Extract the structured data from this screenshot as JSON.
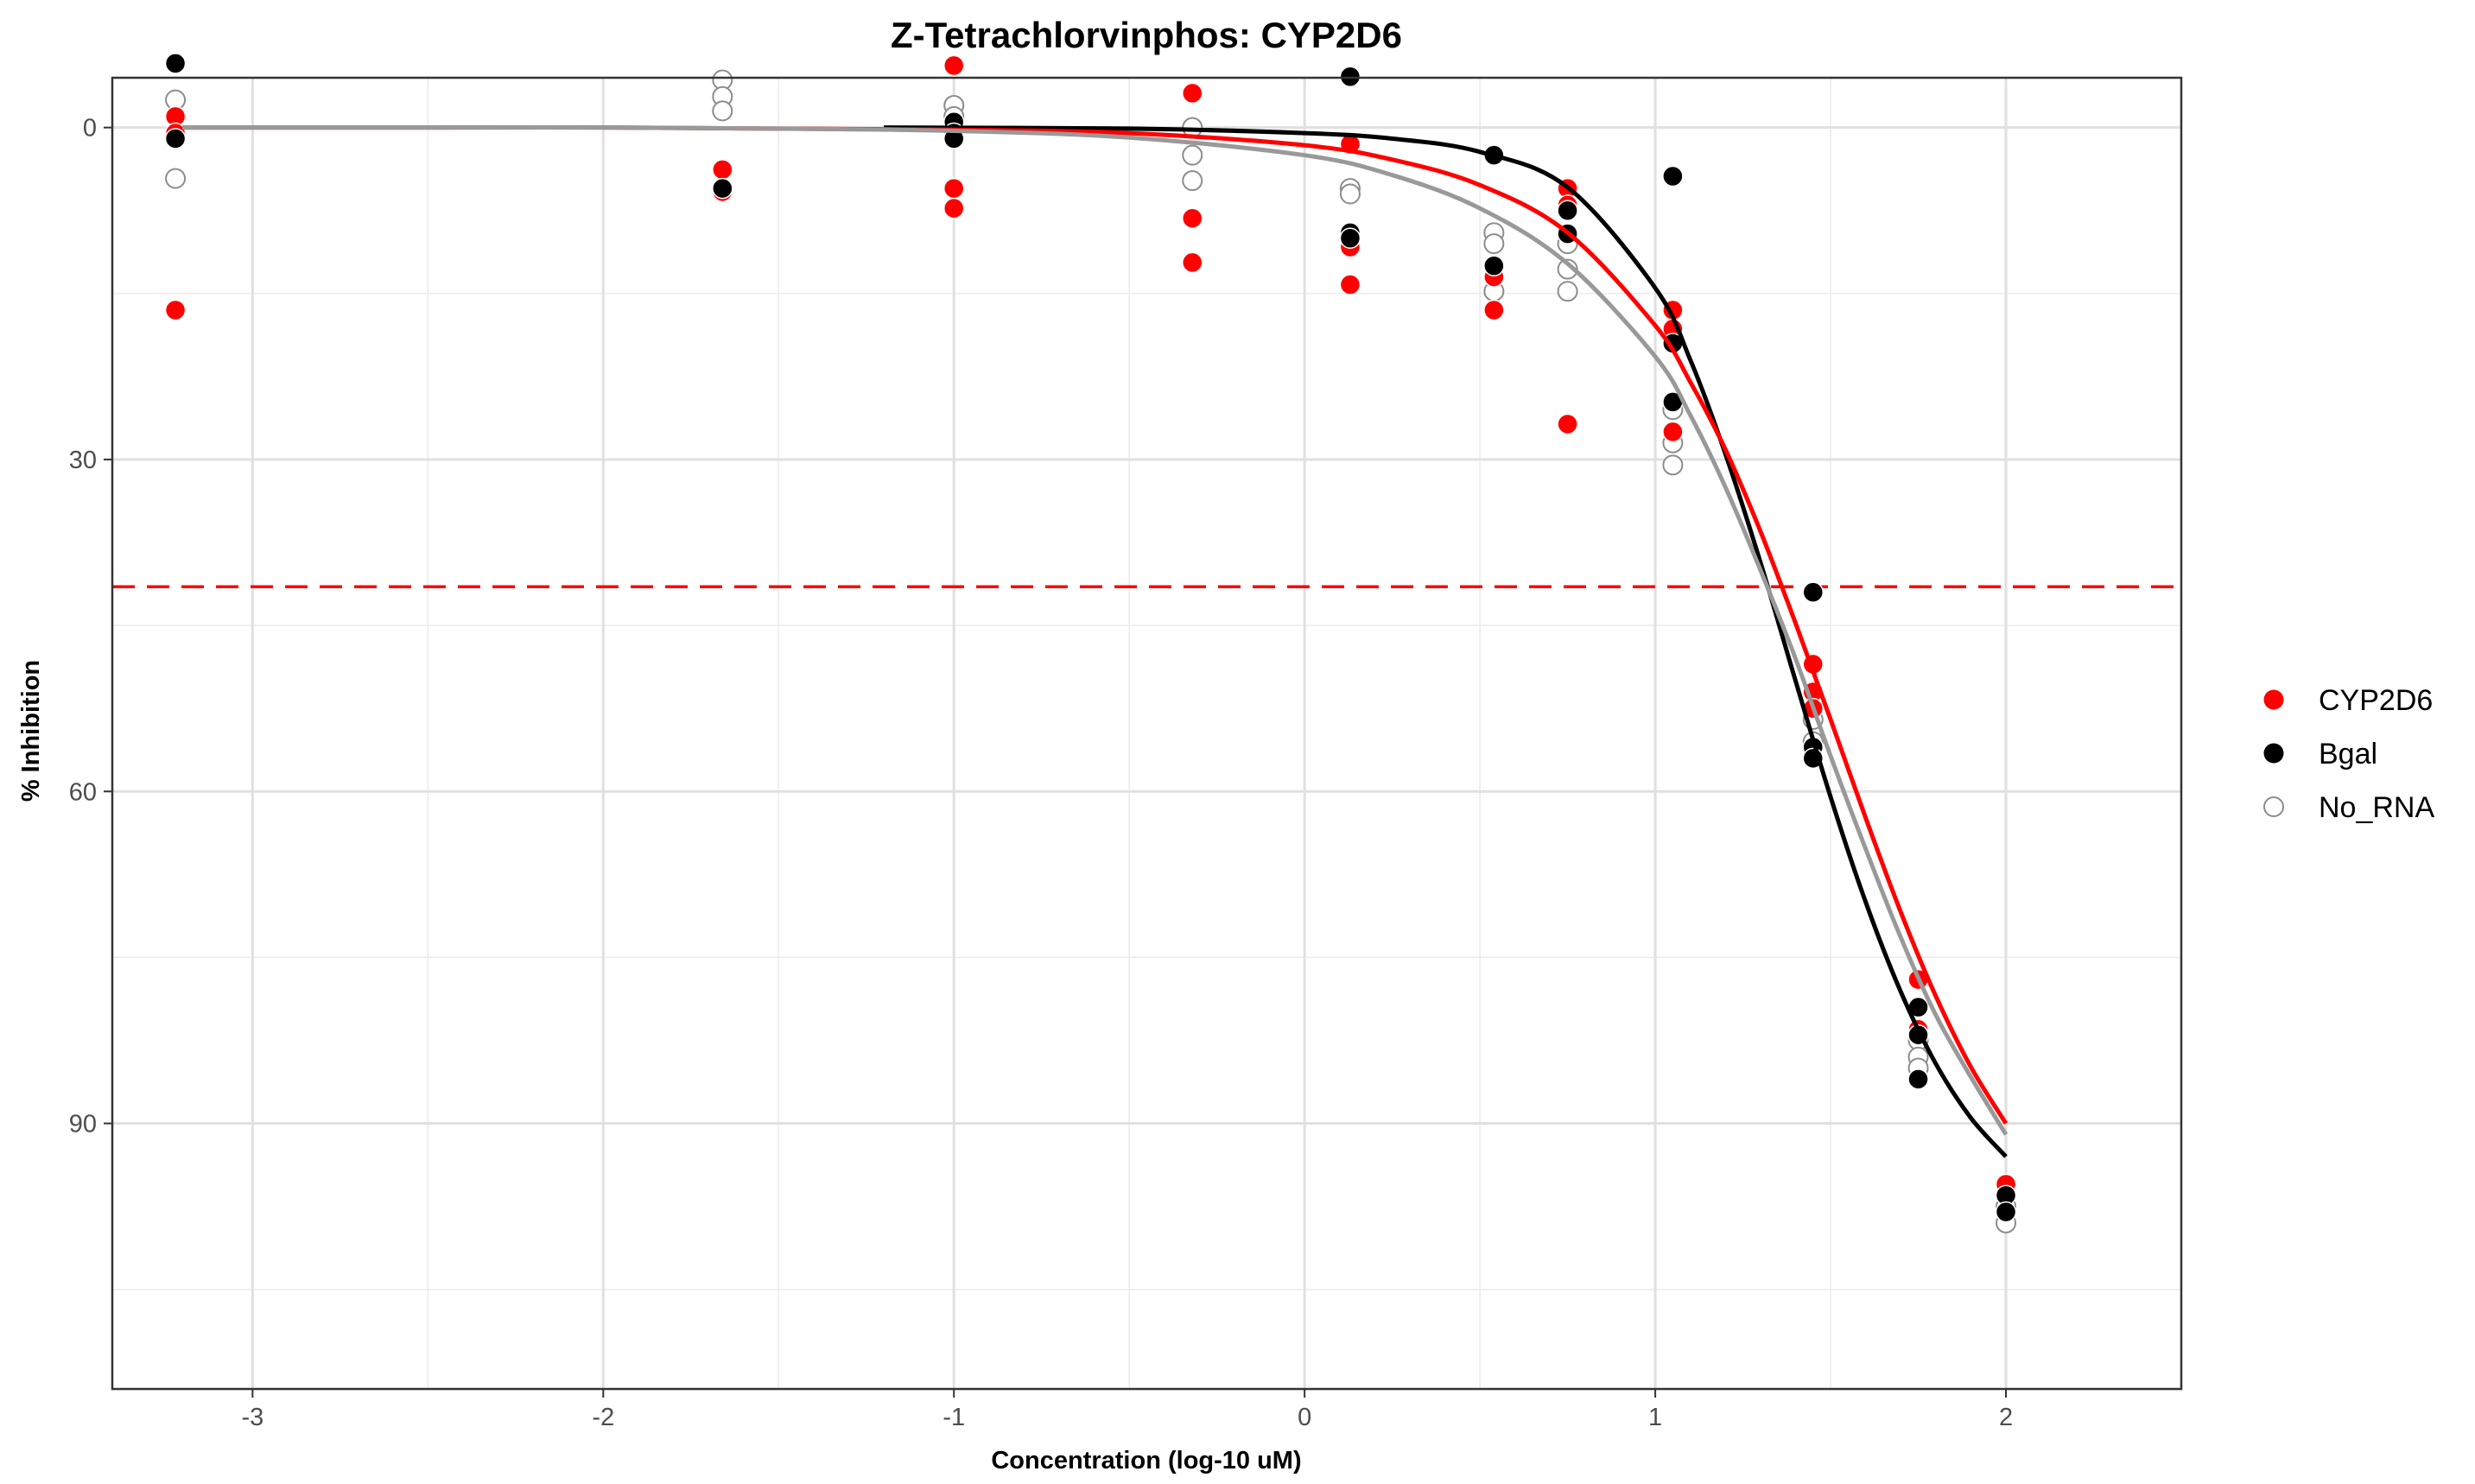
{
  "chart_data": {
    "type": "scatter",
    "title": "Z-Tetrachlorvinphos: CYP2D6",
    "xlabel": "Concentration (log-10 uM)",
    "ylabel": "% Inhibition",
    "xlim": [
      -3.4,
      2.5
    ],
    "ylim": [
      -4.5,
      114
    ],
    "y_reversed": true,
    "x_ticks": [
      -3,
      -2,
      -1,
      0,
      1,
      2
    ],
    "y_ticks": [
      0,
      30,
      60,
      90
    ],
    "x_tick_labels": [
      "-3",
      "-2",
      "-1",
      "0",
      "1",
      "2"
    ],
    "y_tick_labels": [
      "0",
      "30",
      "60",
      "90"
    ],
    "grid": true,
    "legend_position": "right",
    "reference_line": {
      "y": 41.5,
      "style": "dashed",
      "color": "#ff0000"
    },
    "series": [
      {
        "name": "CYP2D6",
        "color": "#ff0000",
        "marker": "filled-circle",
        "points": [
          [
            -3.22,
            -1.0
          ],
          [
            -3.22,
            0.5
          ],
          [
            -3.22,
            16.5
          ],
          [
            -1.66,
            3.8
          ],
          [
            -1.66,
            5.8
          ],
          [
            -1.0,
            -5.6
          ],
          [
            -1.0,
            5.5
          ],
          [
            -1.0,
            7.3
          ],
          [
            -0.32,
            -3.1
          ],
          [
            -0.32,
            8.2
          ],
          [
            -0.32,
            12.2
          ],
          [
            0.13,
            1.5
          ],
          [
            0.13,
            10.8
          ],
          [
            0.13,
            14.2
          ],
          [
            0.54,
            13.5
          ],
          [
            0.54,
            16.5
          ],
          [
            0.75,
            5.5
          ],
          [
            0.75,
            7.0
          ],
          [
            0.75,
            26.8
          ],
          [
            1.05,
            16.5
          ],
          [
            1.05,
            18.2
          ],
          [
            1.05,
            27.5
          ],
          [
            1.45,
            48.5
          ],
          [
            1.45,
            51.0
          ],
          [
            1.45,
            52.5
          ],
          [
            1.75,
            77.0
          ],
          [
            1.75,
            81.5
          ],
          [
            2.0,
            95.5
          ]
        ],
        "curve": {
          "x": [
            -3.2,
            -2.5,
            -2.0,
            -1.5,
            -1.0,
            -0.5,
            0.0,
            0.25,
            0.5,
            0.75,
            1.0,
            1.1,
            1.2,
            1.3,
            1.4,
            1.5,
            1.6,
            1.7,
            1.8,
            1.9,
            2.0
          ],
          "y": [
            0.0,
            0.0,
            0.0,
            0.1,
            0.2,
            0.5,
            1.6,
            2.9,
            5.2,
            9.5,
            17.9,
            23.0,
            29.1,
            36.5,
            44.8,
            53.5,
            62.4,
            70.9,
            78.5,
            84.9,
            90.0
          ]
        }
      },
      {
        "name": "Bgal",
        "color": "#000000",
        "marker": "filled-circle",
        "points": [
          [
            -3.22,
            -5.8
          ],
          [
            -3.22,
            1.0
          ],
          [
            -1.66,
            5.5
          ],
          [
            -1.0,
            -0.5
          ],
          [
            -1.0,
            0.5
          ],
          [
            -1.0,
            1.0
          ],
          [
            0.13,
            -4.6
          ],
          [
            0.13,
            9.5
          ],
          [
            0.13,
            10.0
          ],
          [
            0.54,
            2.5
          ],
          [
            0.54,
            12.5
          ],
          [
            0.75,
            7.5
          ],
          [
            0.75,
            9.6
          ],
          [
            1.05,
            4.4
          ],
          [
            1.05,
            19.5
          ],
          [
            1.05,
            24.8
          ],
          [
            1.45,
            42.0
          ],
          [
            1.45,
            56.0
          ],
          [
            1.45,
            57.0
          ],
          [
            1.75,
            79.5
          ],
          [
            1.75,
            82.0
          ],
          [
            1.75,
            86.0
          ],
          [
            2.0,
            96.5
          ],
          [
            2.0,
            98.0
          ]
        ],
        "curve": {
          "x": [
            -1.2,
            -0.5,
            0.0,
            0.25,
            0.5,
            0.75,
            1.0,
            1.1,
            1.2,
            1.3,
            1.4,
            1.5,
            1.6,
            1.7,
            1.8,
            1.9,
            2.0
          ],
          "y": [
            0.0,
            0.1,
            0.5,
            1.0,
            2.2,
            5.4,
            14.5,
            21.0,
            29.5,
            39.3,
            50.0,
            60.5,
            70.0,
            78.1,
            84.6,
            89.5,
            93.0
          ]
        }
      },
      {
        "name": "No_RNA",
        "color": "#8c8c8c",
        "marker": "open-circle",
        "points": [
          [
            -3.22,
            -2.5
          ],
          [
            -3.22,
            4.6
          ],
          [
            -1.66,
            -4.3
          ],
          [
            -1.66,
            -2.8
          ],
          [
            -1.66,
            -1.5
          ],
          [
            -1.0,
            -2.0
          ],
          [
            -1.0,
            -1.0
          ],
          [
            -0.32,
            0.0
          ],
          [
            -0.32,
            2.5
          ],
          [
            -0.32,
            4.8
          ],
          [
            0.13,
            5.5
          ],
          [
            0.13,
            6.0
          ],
          [
            0.54,
            9.5
          ],
          [
            0.54,
            10.5
          ],
          [
            0.54,
            14.8
          ],
          [
            0.75,
            10.5
          ],
          [
            0.75,
            12.8
          ],
          [
            0.75,
            14.8
          ],
          [
            1.05,
            25.5
          ],
          [
            1.05,
            28.5
          ],
          [
            1.05,
            30.5
          ],
          [
            1.45,
            53.5
          ],
          [
            1.45,
            55.5
          ],
          [
            1.75,
            82.5
          ],
          [
            1.75,
            84.0
          ],
          [
            1.75,
            85.0
          ],
          [
            2.0,
            97.5
          ],
          [
            2.0,
            99.0
          ]
        ],
        "curve": {
          "x": [
            -3.2,
            -2.5,
            -2.0,
            -1.5,
            -1.0,
            -0.5,
            0.0,
            0.25,
            0.5,
            0.75,
            1.0,
            1.1,
            1.2,
            1.3,
            1.4,
            1.5,
            1.6,
            1.7,
            1.8,
            1.9,
            2.0
          ],
          "y": [
            0.0,
            0.0,
            0.0,
            0.1,
            0.3,
            0.9,
            2.5,
            4.3,
            7.3,
            12.3,
            20.7,
            26.0,
            32.5,
            40.0,
            48.0,
            56.8,
            65.2,
            73.2,
            80.2,
            85.8,
            91.0
          ]
        }
      }
    ]
  }
}
